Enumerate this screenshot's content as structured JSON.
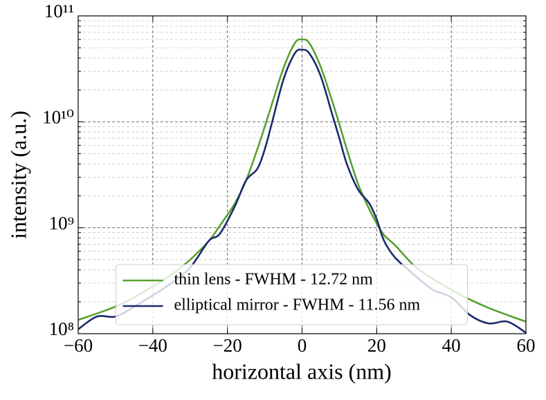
{
  "chart_data": {
    "type": "line",
    "xlabel": "horizontal axis (nm)",
    "ylabel": "intensity (a.u.)",
    "x": [
      -60,
      -55,
      -50,
      -45,
      -40,
      -35,
      -30,
      -25,
      -22,
      -18,
      -15,
      -12,
      -10,
      -8,
      -5,
      -2,
      0,
      2,
      5,
      8,
      10,
      12,
      15,
      18,
      20,
      22,
      25,
      30,
      35,
      40,
      45,
      50,
      55,
      60
    ],
    "series": [
      {
        "name": "thin lens - FWHM - 12.72 nm",
        "color": "#58a12e",
        "values": [
          135000000.0,
          155000000.0,
          180000000.0,
          220000000.0,
          280000000.0,
          360000000.0,
          500000000.0,
          750000000.0,
          1050000000.0,
          1700000000.0,
          2800000000.0,
          5500000000.0,
          9000000000.0,
          15000000000.0,
          32000000000.0,
          55000000000.0,
          60000000000.0,
          55000000000.0,
          33000000000.0,
          16000000000.0,
          9500000000.0,
          5500000000.0,
          2600000000.0,
          1500000000.0,
          1100000000.0,
          850000000.0,
          680000000.0,
          440000000.0,
          330000000.0,
          260000000.0,
          210000000.0,
          175000000.0,
          150000000.0,
          130000000.0
        ]
      },
      {
        "name": "elliptical mirror - FWHM - 11.56 nm",
        "color": "#1a2a6c",
        "values": [
          110000000.0,
          145000000.0,
          145000000.0,
          180000000.0,
          230000000.0,
          300000000.0,
          420000000.0,
          750000000.0,
          880000000.0,
          1600000000.0,
          2800000000.0,
          3600000000.0,
          5500000000.0,
          10000000000.0,
          25000000000.0,
          44000000000.0,
          48000000000.0,
          44000000000.0,
          27000000000.0,
          12000000000.0,
          7000000000.0,
          4000000000.0,
          2300000000.0,
          1700000000.0,
          1200000000.0,
          750000000.0,
          520000000.0,
          360000000.0,
          260000000.0,
          220000000.0,
          150000000.0,
          125000000.0,
          130000000.0,
          102000000.0
        ]
      }
    ],
    "xlim": [
      -60,
      60
    ],
    "xticks": [
      {
        "value": -60,
        "label": "−60"
      },
      {
        "value": -40,
        "label": "−40"
      },
      {
        "value": -20,
        "label": "−20"
      },
      0,
      20,
      40,
      60
    ],
    "ylim": [
      100000000.0,
      100000000000.0
    ],
    "ylog": true,
    "yticks": [
      {
        "value": 100000000.0,
        "label": "10⁸"
      },
      {
        "value": 1000000000.0,
        "label": "10⁹"
      },
      {
        "value": 10000000000.0,
        "label": "10¹⁰"
      },
      {
        "value": 100000000000.0,
        "label": "10¹¹"
      }
    ],
    "grid": true,
    "legend": "lower center"
  }
}
